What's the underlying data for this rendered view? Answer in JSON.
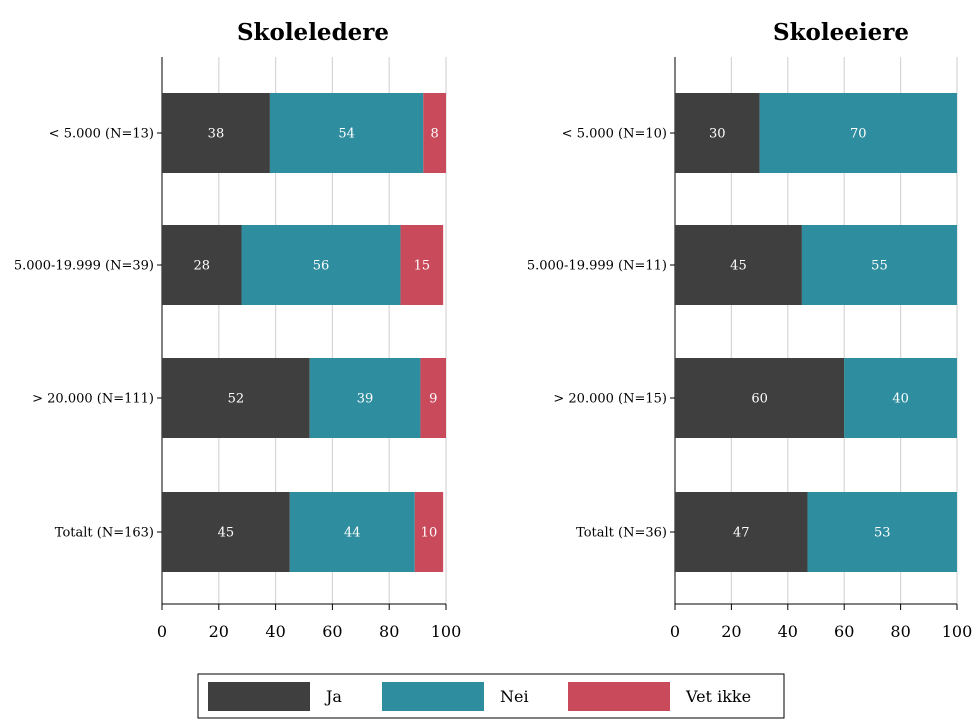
{
  "chart_data": [
    {
      "type": "bar",
      "orientation": "horizontal",
      "stacked": true,
      "title": "Skoleledere",
      "categories": [
        "< 5.000 (N=13)",
        "5.000-19.999 (N=39)",
        "> 20.000 (N=111)",
        "Totalt (N=163)"
      ],
      "series": [
        {
          "name": "Ja",
          "values": [
            38,
            28,
            52,
            45
          ]
        },
        {
          "name": "Nei",
          "values": [
            54,
            56,
            39,
            44
          ]
        },
        {
          "name": "Vet ikke",
          "values": [
            8,
            15,
            9,
            10
          ]
        }
      ],
      "xlim": [
        0,
        100
      ],
      "xticks": [
        "0",
        "20",
        "40",
        "60",
        "80",
        "100"
      ],
      "grid": "vertical"
    },
    {
      "type": "bar",
      "orientation": "horizontal",
      "stacked": true,
      "title": "Skoleeiere",
      "categories": [
        "< 5.000 (N=10)",
        "5.000-19.999 (N=11)",
        "> 20.000 (N=15)",
        "Totalt (N=36)"
      ],
      "series": [
        {
          "name": "Ja",
          "values": [
            30,
            45,
            60,
            47
          ]
        },
        {
          "name": "Nei",
          "values": [
            70,
            55,
            40,
            53
          ]
        },
        {
          "name": "Vet ikke",
          "values": [
            0,
            0,
            0,
            0
          ]
        }
      ],
      "xlim": [
        0,
        100
      ],
      "xticks": [
        "0",
        "20",
        "40",
        "60",
        "80",
        "100"
      ],
      "grid": "vertical"
    }
  ],
  "legend": {
    "position": "bottom",
    "items": [
      {
        "label": "Ja",
        "color": "#3f3f3f"
      },
      {
        "label": "Nei",
        "color": "#2e8d9e"
      },
      {
        "label": "Vet ikke",
        "color": "#c94a5a"
      }
    ]
  }
}
